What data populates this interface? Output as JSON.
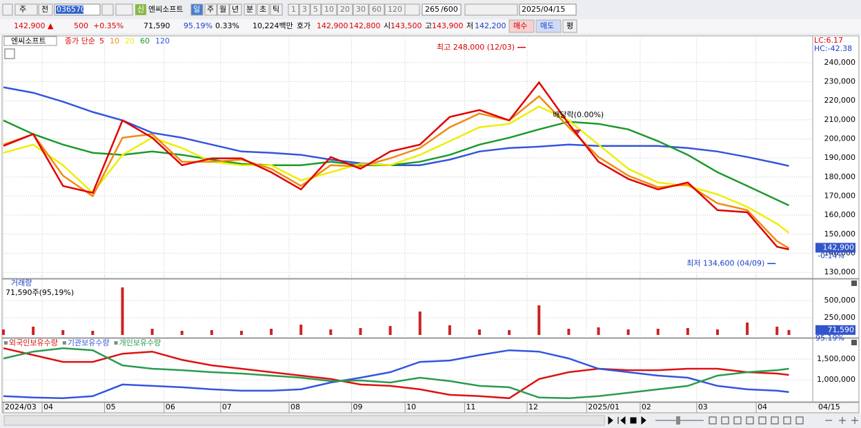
{
  "toolbar": {
    "market": "주",
    "kind": "전",
    "code": "036570",
    "badge": "신",
    "name": "엔씨소프트",
    "periods": [
      "일",
      "주",
      "월",
      "년",
      "분",
      "초",
      "틱"
    ],
    "intervals": [
      "1",
      "3",
      "5",
      "10",
      "20",
      "30",
      "60",
      "120"
    ],
    "count": "265",
    "max": "/600",
    "date": "2025/04/15"
  },
  "quote": {
    "price": "142,900 ▲",
    "change": "500",
    "change_pct": "+0.35%",
    "volume": "71,590",
    "volume_ratio": "95.19%",
    "turnover": "0.33%",
    "amount": "10,224백만",
    "quote_label": "호가",
    "ask": "142,900",
    "bid": "142,800",
    "open_label": "시",
    "open": "143,500",
    "high_label": "고",
    "high": "143,900",
    "low_label": "저",
    "low": "142,200",
    "buy": "매수",
    "sell": "매도",
    "avg": "평"
  },
  "chart_data": [
    {
      "type": "line",
      "title": "엔씨소프트",
      "legend_label": "종가 단순",
      "lc": "LC:6.17",
      "hc": "HC:-42.38",
      "x": [
        0,
        10,
        20,
        30,
        40,
        50,
        60,
        70,
        80,
        90,
        100,
        110,
        120,
        130,
        140,
        150,
        160,
        170,
        180,
        190,
        200,
        210,
        220,
        230,
        240,
        250,
        260,
        264
      ],
      "xlim": [
        0,
        272
      ],
      "xticks": [
        {
          "value": 0,
          "label": "2024/03"
        },
        {
          "value": 13,
          "label": "04"
        },
        {
          "value": 34,
          "label": "05"
        },
        {
          "value": 54,
          "label": "06"
        },
        {
          "value": 73,
          "label": "07"
        },
        {
          "value": 96,
          "label": "08"
        },
        {
          "value": 117,
          "label": "09"
        },
        {
          "value": 135,
          "label": "10"
        },
        {
          "value": 155,
          "label": "11"
        },
        {
          "value": 176,
          "label": "12"
        },
        {
          "value": 196,
          "label": "2025/01"
        },
        {
          "value": 214,
          "label": "02"
        },
        {
          "value": 233,
          "label": "03"
        },
        {
          "value": 253,
          "label": "04"
        }
      ],
      "cursor_label": "04/15",
      "ylim": [
        127500,
        249000
      ],
      "yticks": [
        {
          "value": 130000,
          "label": "130,000"
        },
        {
          "value": 140000,
          "label": "140,000"
        },
        {
          "value": 150000,
          "label": "150,000"
        },
        {
          "value": 160000,
          "label": "160,000"
        },
        {
          "value": 170000,
          "label": "170,000"
        },
        {
          "value": 180000,
          "label": "180,000"
        },
        {
          "value": 190000,
          "label": "190,000"
        },
        {
          "value": 200000,
          "label": "200,000"
        },
        {
          "value": 210000,
          "label": "210,000"
        },
        {
          "value": 220000,
          "label": "220,000"
        },
        {
          "value": 230000,
          "label": "230,000"
        },
        {
          "value": 240000,
          "label": "240,000"
        }
      ],
      "grid": true,
      "series": [
        {
          "name": "120",
          "color": "#3355dd",
          "values": [
            227100,
            224200,
            219500,
            214100,
            209700,
            203200,
            200600,
            197000,
            193400,
            192700,
            191600,
            189100,
            187200,
            186200,
            186200,
            189100,
            193400,
            195200,
            195900,
            197000,
            196300,
            196300,
            196300,
            195200,
            193400,
            190500,
            187200,
            185800
          ]
        },
        {
          "name": "60",
          "color": "#1a9a2a",
          "values": [
            209700,
            202500,
            197000,
            192700,
            191600,
            193400,
            191600,
            189100,
            186900,
            186200,
            186200,
            188000,
            186200,
            186200,
            188000,
            191600,
            197000,
            200600,
            205000,
            209000,
            207900,
            205000,
            198800,
            191600,
            182500,
            175300,
            168000,
            165100
          ]
        },
        {
          "name": "20",
          "color": "#eeee00",
          "values": [
            192700,
            197000,
            186200,
            171700,
            191600,
            200600,
            195200,
            188000,
            186200,
            186200,
            178200,
            182500,
            186900,
            186200,
            191600,
            198800,
            206100,
            207900,
            217000,
            209700,
            197000,
            184300,
            177100,
            175300,
            170900,
            164400,
            155400,
            150700
          ]
        },
        {
          "name": "10",
          "color": "#f08a10",
          "values": [
            197000,
            202500,
            180700,
            169900,
            200600,
            202500,
            188000,
            188000,
            189100,
            184300,
            175300,
            186200,
            185500,
            189800,
            195200,
            206100,
            213300,
            209700,
            222400,
            206100,
            190500,
            180700,
            174600,
            176000,
            166200,
            162600,
            146300,
            142700
          ]
        },
        {
          "name": "5",
          "color": "#e00000",
          "values": [
            196300,
            202500,
            175300,
            171700,
            209700,
            200600,
            186200,
            189800,
            189800,
            182500,
            173500,
            190500,
            184300,
            193400,
            197000,
            211500,
            215100,
            209700,
            229600,
            207900,
            188000,
            179000,
            173500,
            177100,
            162600,
            161500,
            143400,
            142000
          ]
        }
      ],
      "annotations": [
        {
          "text": "최고 248,000 (12/03)",
          "x": 176,
          "value": 248000
        },
        {
          "text": "최저 134,600 (04/09)",
          "x": 260,
          "value": 134600
        }
      ],
      "event": {
        "text": "배당락(0.00%)",
        "x": 193
      },
      "current": {
        "value": 142900,
        "label": "142,900",
        "change": "-0.14%"
      }
    },
    {
      "type": "bar",
      "title": "거래량",
      "subtitle": "71,590주(95,19%)",
      "color": "#cc2222",
      "values": [
        80000,
        120000,
        70000,
        60000,
        690000,
        90000,
        60000,
        70000,
        60000,
        90000,
        150000,
        80000,
        100000,
        130000,
        340000,
        140000,
        80000,
        70000,
        430000,
        90000,
        110000,
        80000,
        90000,
        100000,
        80000,
        180000,
        120000,
        71590
      ],
      "ylim": [
        0,
        760000
      ],
      "yticks": [
        {
          "value": 250000,
          "label": "250,000"
        },
        {
          "value": 500000,
          "label": "500,000"
        }
      ],
      "grid": true,
      "current": {
        "value": 71590,
        "label": "71,590",
        "ratio": "95.19%"
      }
    },
    {
      "type": "line",
      "ylim": [
        480000,
        1770000
      ],
      "yticks": [
        {
          "value": 1000000,
          "label": "1,000,000"
        },
        {
          "value": 1500000,
          "label": "1,500,000"
        }
      ],
      "grid": true,
      "series": [
        {
          "name": "외국인보유수량",
          "color": "#dd1111",
          "values": [
            1766700,
            1600000,
            1433000,
            1433000,
            1633000,
            1683000,
            1483000,
            1350000,
            1267000,
            1183000,
            1100000,
            1017000,
            883000,
            850000,
            767000,
            633000,
            600000,
            550000,
            1017000,
            1183000,
            1267000,
            1233000,
            1233000,
            1267000,
            1267000,
            1183000,
            1150000,
            1117000
          ]
        },
        {
          "name": "기관보유수량",
          "color": "#3355dd",
          "values": [
            600000,
            567000,
            550000,
            600000,
            883000,
            850000,
            817000,
            767000,
            733000,
            733000,
            767000,
            933000,
            1050000,
            1183000,
            1433000,
            1467000,
            1600000,
            1717000,
            1683000,
            1517000,
            1267000,
            1183000,
            1100000,
            1050000,
            850000,
            767000,
            733000,
            700000
          ]
        },
        {
          "name": "개인보유수량",
          "color": "#2a9a50",
          "values": [
            1517000,
            1683000,
            1767000,
            1717000,
            1350000,
            1267000,
            1233000,
            1183000,
            1150000,
            1100000,
            1050000,
            967000,
            983000,
            933000,
            1050000,
            967000,
            850000,
            817000,
            567000,
            550000,
            600000,
            683000,
            767000,
            850000,
            1100000,
            1183000,
            1233000,
            1267000
          ]
        }
      ]
    }
  ]
}
